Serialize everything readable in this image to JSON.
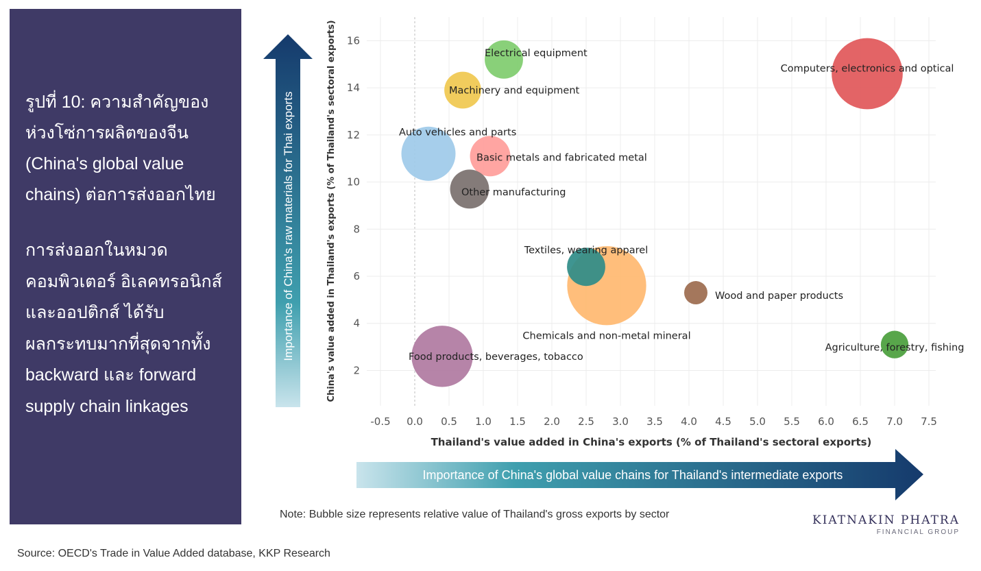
{
  "panel": {
    "title_lines": [
      "รูปที่ 10: ความสำคัญของ",
      "ห่วงโซ่การผลิตของจีน",
      "(China's global value",
      "chains) ต่อการส่งออกไทย"
    ],
    "desc_lines": [
      "การส่งออกในหมวด",
      "คอมพิวเตอร์ อิเลคทรอนิกส์",
      "และออปติกส์ ได้รับ",
      "ผลกระทบมากที่สุดจากทั้ง",
      "backward และ forward",
      "supply chain linkages"
    ]
  },
  "note": "Note: Bubble size represents relative value of Thailand's gross exports by sector",
  "source": "Source: OECD's Trade in Value Added database, KKP Research",
  "logo": {
    "main": "KIATNAKIN PHATRA",
    "sub": "FINANCIAL GROUP"
  },
  "arrows": {
    "vertical_label": "Importance of China's raw materials for Thai exports",
    "horizontal_label": "Importance of China's global value chains for Thailand's intermediate exports",
    "colors": [
      "#c9e4ec",
      "#3f9fae",
      "#153a6c"
    ]
  },
  "chart_data": {
    "type": "scatter",
    "title": "",
    "xlabel": "Thailand's value added in China's exports (% of Thailand's sectoral exports)",
    "ylabel": "China's value added in Thailand's exports (% of Thailand's sectoral exports)",
    "xlim": [
      -0.7,
      7.6
    ],
    "ylim": [
      0.5,
      17.0
    ],
    "x_ticks": [
      -0.5,
      0.0,
      0.5,
      1.0,
      1.5,
      2.0,
      2.5,
      3.0,
      3.5,
      4.0,
      4.5,
      5.0,
      5.5,
      6.0,
      6.5,
      7.0,
      7.5
    ],
    "x_tick_labels": [
      "-0.5",
      "0.0",
      "0.5",
      "1.0",
      "1.5",
      "2.0",
      "2.5",
      "3.0",
      "3.5",
      "4.0",
      "4.5",
      "5.0",
      "5.5",
      "6.0",
      "6.5",
      "7.0",
      "7.5"
    ],
    "y_ticks": [
      2,
      4,
      6,
      8,
      10,
      12,
      14,
      16
    ],
    "y_tick_labels": [
      "2",
      "4",
      "6",
      "8",
      "10",
      "12",
      "14",
      "16"
    ],
    "grid": true,
    "bubble_size_meaning": "relative value of Thailand's gross exports by sector",
    "series": [
      {
        "name": "Computers, electronics and optical",
        "x": 6.6,
        "y": 14.6,
        "size": 9.3,
        "color": "#e15759",
        "label_anchor": "middle"
      },
      {
        "name": "Electrical equipment",
        "x": 1.3,
        "y": 15.2,
        "size": 2.7,
        "color": "#7fcc6e",
        "label_anchor": "start"
      },
      {
        "name": "Machinery and equipment",
        "x": 0.7,
        "y": 13.9,
        "size": 2.5,
        "color": "#f0c84f",
        "label_anchor": "start"
      },
      {
        "name": "Auto vehicles and parts",
        "x": 0.2,
        "y": 11.2,
        "size": 5.4,
        "color": "#9ecae9",
        "label_anchor": "start"
      },
      {
        "name": "Basic metals and fabricated metal",
        "x": 1.1,
        "y": 11.1,
        "size": 3.0,
        "color": "#ff9d9a",
        "label_anchor": "start"
      },
      {
        "name": "Other manufacturing",
        "x": 0.8,
        "y": 9.7,
        "size": 2.8,
        "color": "#79706e",
        "label_anchor": "start"
      },
      {
        "name": "Chemicals and non-metal mineral",
        "x": 2.8,
        "y": 5.6,
        "size": 11.5,
        "color": "#ffb970",
        "label_anchor": "middle"
      },
      {
        "name": "Textiles, wearing apparel",
        "x": 2.5,
        "y": 6.4,
        "size": 2.7,
        "color": "#2f8c88",
        "label_anchor": "middle"
      },
      {
        "name": "Wood and paper products",
        "x": 4.1,
        "y": 5.3,
        "size": 1.0,
        "color": "#9c6b4e",
        "label_anchor": "start"
      },
      {
        "name": "Agriculture, forestry, fishing",
        "x": 7.0,
        "y": 3.1,
        "size": 1.4,
        "color": "#4a9e3c",
        "label_anchor": "middle"
      },
      {
        "name": "Food products, beverages, tobacco",
        "x": 0.4,
        "y": 2.6,
        "size": 6.9,
        "color": "#b07aa1",
        "label_anchor": "start"
      }
    ]
  }
}
